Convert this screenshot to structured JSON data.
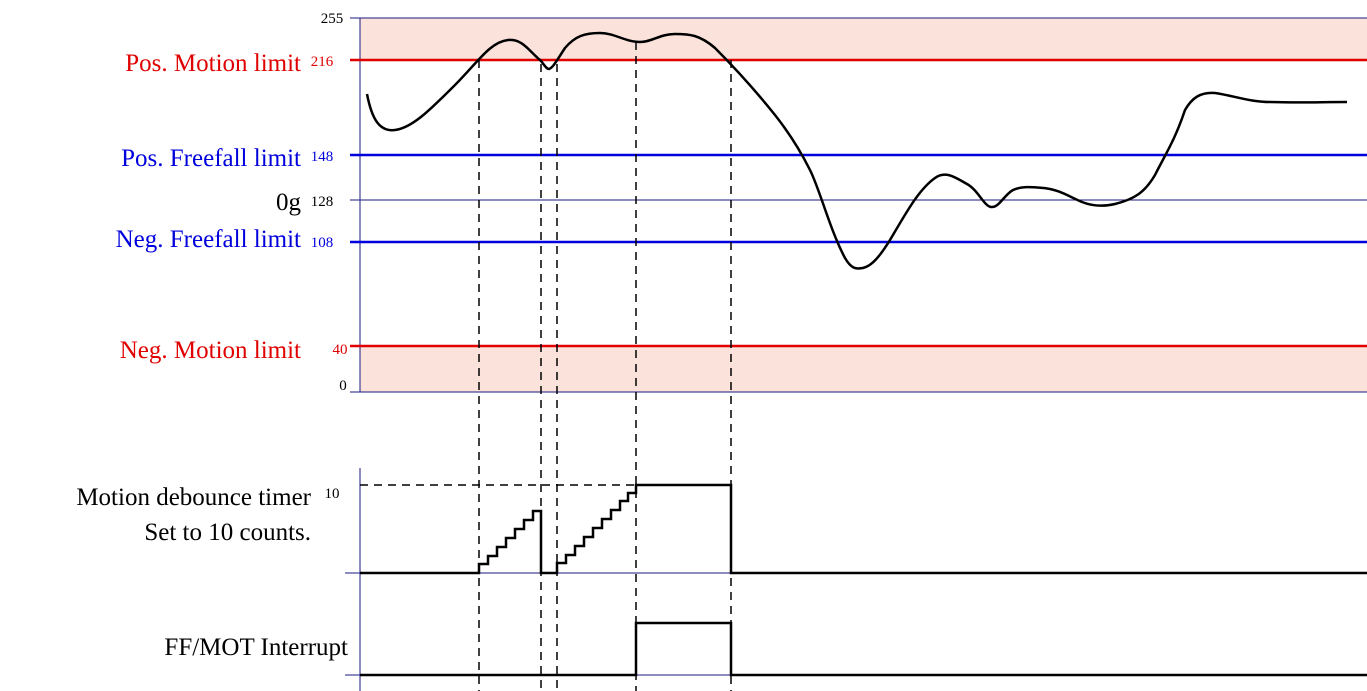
{
  "colors": {
    "motion": "#e00000",
    "freefall": "#0000dd",
    "axis": "#1a1a80",
    "band": "#fbe3dc",
    "trace": "#000000"
  },
  "top_chart": {
    "ticks": {
      "max": "255",
      "pos_motion": "216",
      "pos_freefall": "148",
      "zero_g": "128",
      "neg_freefall": "108",
      "neg_motion": "40",
      "min": "0"
    },
    "labels": {
      "pos_motion": "Pos. Motion limit",
      "pos_freefall": "Pos. Freefall limit",
      "zero_g": "0g",
      "neg_freefall": "Neg. Freefall limit",
      "neg_motion": "Neg. Motion limit"
    }
  },
  "debounce_chart": {
    "label_line1": "Motion debounce timer",
    "label_line2": "Set to 10 counts.",
    "tick": "10"
  },
  "interrupt_chart": {
    "label": "FF/MOT Interrupt"
  }
}
